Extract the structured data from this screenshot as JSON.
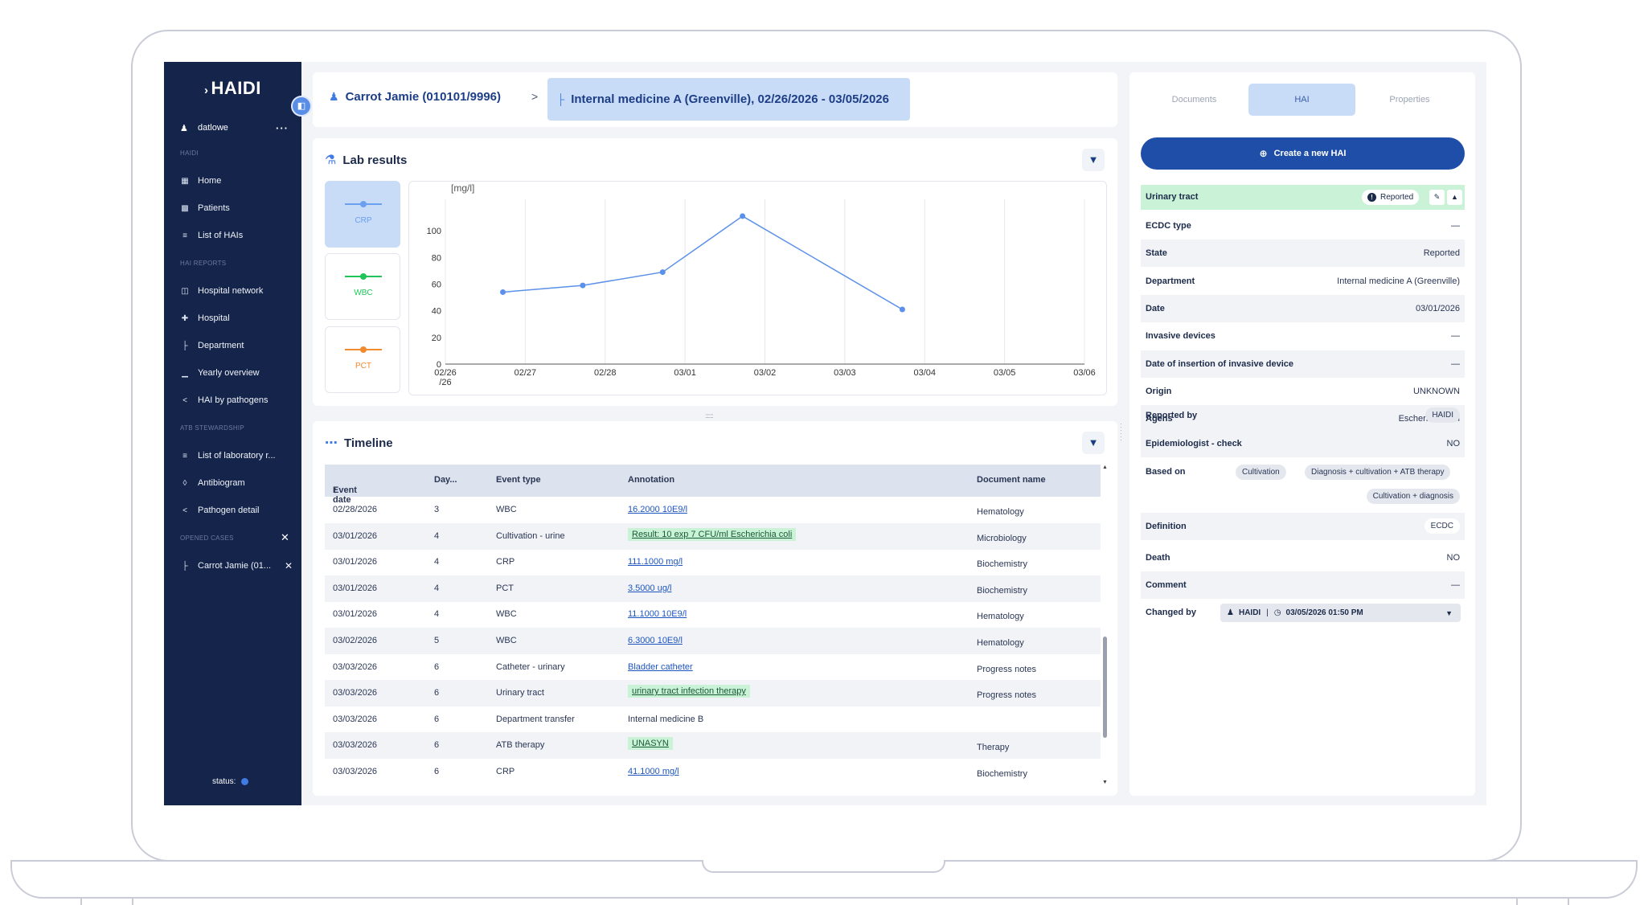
{
  "app": {
    "logo": "HAIDI",
    "logo_arrow": "›"
  },
  "sidebar": {
    "user": "datlowe",
    "sections": {
      "haidi": "HAIDI",
      "reports": "HAI REPORTS",
      "atb": "ATB STEWARDSHIP",
      "opened": "OPENED CASES"
    },
    "items": [
      {
        "label": "Home",
        "icon": "grid-icon"
      },
      {
        "label": "Patients",
        "icon": "id-card-icon"
      },
      {
        "label": "List of HAIs",
        "icon": "list-icon"
      },
      {
        "label": "Hospital network",
        "icon": "network-icon"
      },
      {
        "label": "Hospital",
        "icon": "hospital-plus-icon"
      },
      {
        "label": "Department",
        "icon": "bed-icon"
      },
      {
        "label": "Yearly overview",
        "icon": "bar-chart-icon"
      },
      {
        "label": "HAI by pathogens",
        "icon": "share-icon"
      },
      {
        "label": "List of laboratory r...",
        "icon": "list-icon"
      },
      {
        "label": "Antibiogram",
        "icon": "capsule-icon"
      },
      {
        "label": "Pathogen detail",
        "icon": "share-icon"
      }
    ],
    "opened_case": "Carrot Jamie (01...",
    "status_label": "status:"
  },
  "breadcrumb": {
    "patient": "Carrot Jamie (010101/9996)",
    "separator": ">",
    "stay": "Internal medicine A (Greenville), 02/26/2026 - 03/05/2026"
  },
  "lab": {
    "title": "Lab results",
    "series_tiles": [
      {
        "label": "CRP",
        "color": "#6aa0ef",
        "active": true
      },
      {
        "label": "WBC",
        "color": "#1fc45a",
        "active": false
      },
      {
        "label": "PCT",
        "color": "#f28a2e",
        "active": false
      }
    ]
  },
  "chart_data": {
    "type": "line",
    "ylabel": "[mg/l]",
    "ylim": [
      0,
      120
    ],
    "yticks": [
      0,
      20,
      40,
      60,
      80,
      100
    ],
    "xticks": [
      "02/26 /26",
      "02/27",
      "02/28",
      "03/01",
      "03/02",
      "03/03",
      "03/04",
      "03/05",
      "03/06"
    ],
    "series": [
      {
        "name": "CRP",
        "color": "#5b91ea",
        "points": [
          {
            "x": 0.72,
            "y": 54
          },
          {
            "x": 1.72,
            "y": 59
          },
          {
            "x": 2.72,
            "y": 69
          },
          {
            "x": 3.72,
            "y": 111
          },
          {
            "x": 5.72,
            "y": 41
          }
        ]
      }
    ]
  },
  "timeline": {
    "title": "Timeline",
    "columns": [
      "Event date",
      "Day...",
      "Event type",
      "Annotation",
      "Document name"
    ],
    "rows": [
      {
        "date": "02/28/2026",
        "day": "3",
        "type": "WBC",
        "annotation": "16.2000 10E9/l",
        "style": "link",
        "doc": "Hematology"
      },
      {
        "date": "03/01/2026",
        "day": "4",
        "type": "Cultivation - urine",
        "annotation": "Result: 10 exp 7 CFU/ml Escherichia coli",
        "style": "highlight",
        "doc": "Microbiology"
      },
      {
        "date": "03/01/2026",
        "day": "4",
        "type": "CRP",
        "annotation": "111.1000 mg/l",
        "style": "link",
        "doc": "Biochemistry"
      },
      {
        "date": "03/01/2026",
        "day": "4",
        "type": "PCT",
        "annotation": "3.5000 ug/l",
        "style": "link",
        "doc": "Biochemistry"
      },
      {
        "date": "03/01/2026",
        "day": "4",
        "type": "WBC",
        "annotation": "11.1000 10E9/l",
        "style": "link",
        "doc": "Hematology"
      },
      {
        "date": "03/02/2026",
        "day": "5",
        "type": "WBC",
        "annotation": "6.3000 10E9/l",
        "style": "link",
        "doc": "Hematology"
      },
      {
        "date": "03/03/2026",
        "day": "6",
        "type": "Catheter - urinary",
        "annotation": "Bladder catheter",
        "style": "link",
        "doc": "Progress notes"
      },
      {
        "date": "03/03/2026",
        "day": "6",
        "type": "Urinary tract",
        "annotation": "urinary tract infection therapy",
        "style": "highlight",
        "doc": "Progress notes"
      },
      {
        "date": "03/03/2026",
        "day": "6",
        "type": "Department transfer",
        "annotation": "Internal medicine B",
        "style": "plain",
        "doc": ""
      },
      {
        "date": "03/03/2026",
        "day": "6",
        "type": "ATB therapy",
        "annotation": "UNASYN",
        "style": "highlight",
        "doc": "Therapy"
      },
      {
        "date": "03/03/2026",
        "day": "6",
        "type": "CRP",
        "annotation": "41.1000 mg/l",
        "style": "link",
        "doc": "Biochemistry"
      }
    ]
  },
  "panel": {
    "tabs": [
      "Documents",
      "HAI",
      "Properties"
    ],
    "active_tab": "HAI",
    "create_label": "Create a new HAI",
    "hai_title": "Urinary tract",
    "hai_status": "Reported",
    "props": [
      {
        "k": "ECDC type",
        "v": "—"
      },
      {
        "k": "State",
        "v": "Reported"
      },
      {
        "k": "Department",
        "v": "Internal medicine A (Greenville)"
      },
      {
        "k": "Date",
        "v": "03/01/2026"
      },
      {
        "k": "Invasive devices",
        "v": "—"
      },
      {
        "k": "Date of insertion of invasive device",
        "v": "—"
      },
      {
        "k": "Origin",
        "v": "UNKNOWN"
      },
      {
        "k": "Agens",
        "v": "Escherichia coli"
      }
    ],
    "reported_by": {
      "k": "Reported by",
      "v": "HAIDI"
    },
    "epi_check": {
      "k": "Epidemiologist - check",
      "v": "NO"
    },
    "based_on": {
      "k": "Based on",
      "chips": [
        "Cultivation",
        "Diagnosis + cultivation + ATB therapy",
        "Cultivation + diagnosis"
      ]
    },
    "definition": {
      "k": "Definition",
      "v": "ECDC"
    },
    "death": {
      "k": "Death",
      "v": "NO"
    },
    "comment": {
      "k": "Comment",
      "v": "—"
    },
    "changed_by": {
      "k": "Changed by",
      "user": "HAIDI",
      "sep": "|",
      "when": "03/05/2026 01:50 PM"
    }
  }
}
